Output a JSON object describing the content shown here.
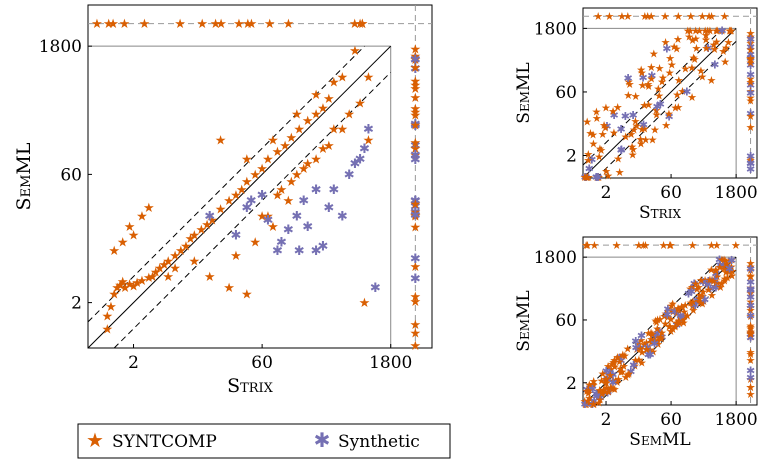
{
  "colors": {
    "syntcomp": "#d95f02",
    "synthetic": "#7570b3"
  },
  "legend": {
    "syntcomp": "SYNTCOMP",
    "synthetic": "Synthetic"
  },
  "chart_data": [
    {
      "type": "scatter",
      "xlabel": "Strix",
      "ylabel": "SemML",
      "scale": "log",
      "xticks": [
        "2",
        "60",
        "1800"
      ],
      "yticks": [
        "2",
        "60",
        "1800"
      ],
      "timeout": 1800,
      "series": [
        {
          "name": "SYNTCOMP",
          "points": [
            [
              1,
              1
            ],
            [
              1,
              1.4
            ],
            [
              1.1,
              1.8
            ],
            [
              1.2,
              2.5
            ],
            [
              1.3,
              3
            ],
            [
              1.4,
              3.2
            ],
            [
              1.5,
              3.5
            ],
            [
              1.6,
              3
            ],
            [
              1.8,
              3.3
            ],
            [
              2,
              3.1
            ],
            [
              2.2,
              3.4
            ],
            [
              2.5,
              3.6
            ],
            [
              3,
              3.9
            ],
            [
              3.3,
              4
            ],
            [
              3.6,
              4.5
            ],
            [
              4,
              5
            ],
            [
              4.5,
              5.5
            ],
            [
              5,
              6
            ],
            [
              6,
              7
            ],
            [
              7,
              8
            ],
            [
              8,
              9
            ],
            [
              9,
              11
            ],
            [
              10,
              12
            ],
            [
              12,
              14
            ],
            [
              14,
              16
            ],
            [
              16,
              18
            ],
            [
              20,
              24
            ],
            [
              25,
              30
            ],
            [
              30,
              35
            ],
            [
              35,
              40
            ],
            [
              40,
              50
            ],
            [
              50,
              60
            ],
            [
              60,
              70
            ],
            [
              70,
              90
            ],
            [
              90,
              110
            ],
            [
              110,
              130
            ],
            [
              130,
              160
            ],
            [
              160,
              200
            ],
            [
              200,
              250
            ],
            [
              250,
              300
            ],
            [
              300,
              350
            ],
            [
              350,
              450
            ],
            [
              1.2,
              8
            ],
            [
              1.5,
              10
            ],
            [
              2.5,
              20
            ],
            [
              3,
              25
            ],
            [
              2,
              12
            ],
            [
              1.8,
              15
            ],
            [
              20,
              150
            ],
            [
              40,
              90
            ],
            [
              80,
              150
            ],
            [
              150,
              300
            ],
            [
              250,
              500
            ],
            [
              400,
              700
            ],
            [
              500,
              800
            ],
            [
              700,
              1600
            ],
            [
              100,
              40
            ],
            [
              120,
              30
            ],
            [
              150,
              60
            ],
            [
              200,
              80
            ],
            [
              300,
              120
            ],
            [
              400,
              200
            ],
            [
              600,
              300
            ],
            [
              800,
              400
            ],
            [
              60,
              20
            ],
            [
              80,
              15
            ],
            [
              900,
              2
            ],
            [
              1000,
              150
            ],
            [
              40,
              2.5
            ],
            [
              25,
              3
            ],
            [
              15,
              4
            ],
            [
              10,
              6
            ],
            [
              6,
              5
            ],
            [
              5,
              4
            ],
            [
              30,
              7
            ],
            [
              50,
              10
            ],
            [
              70,
              20
            ],
            [
              90,
              35
            ],
            [
              130,
              50
            ],
            [
              180,
              70
            ],
            [
              250,
              90
            ],
            [
              350,
              130
            ],
            [
              500,
              200
            ],
            [
              1000,
              800
            ]
          ]
        },
        {
          "name": "Synthetic",
          "points": [
            [
              15,
              20
            ],
            [
              30,
              12
            ],
            [
              40,
              25
            ],
            [
              45,
              30
            ],
            [
              70,
              18
            ],
            [
              90,
              8
            ],
            [
              120,
              14
            ],
            [
              160,
              8
            ],
            [
              200,
              15
            ],
            [
              250,
              8
            ],
            [
              300,
              9
            ],
            [
              350,
              25
            ],
            [
              400,
              40
            ],
            [
              500,
              20
            ],
            [
              600,
              60
            ],
            [
              700,
              80
            ],
            [
              800,
              90
            ],
            [
              900,
              120
            ],
            [
              1000,
              200
            ],
            [
              250,
              40
            ],
            [
              180,
              30
            ],
            [
              150,
              20
            ],
            [
              100,
              10
            ],
            [
              60,
              35
            ],
            [
              1200,
              3
            ]
          ]
        }
      ]
    },
    {
      "type": "scatter",
      "xlabel": "Strix",
      "ylabel": "SemML",
      "scale": "log",
      "xticks": [
        "2",
        "60",
        "1800"
      ],
      "yticks": [
        "2",
        "60",
        "1800"
      ]
    },
    {
      "type": "scatter",
      "xlabel": "SemML",
      "ylabel": "SemML",
      "scale": "log",
      "xticks": [
        "2",
        "60",
        "1800"
      ],
      "yticks": [
        "2",
        "60",
        "1800"
      ]
    }
  ]
}
